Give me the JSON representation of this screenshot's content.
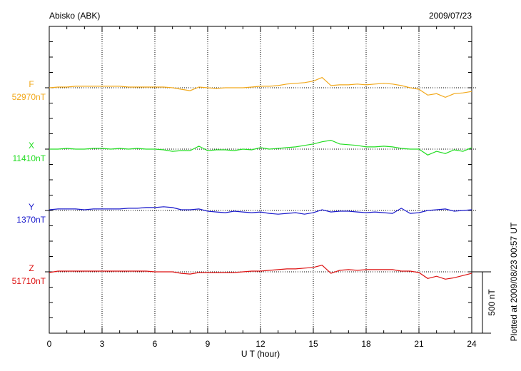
{
  "chart_data": {
    "type": "line",
    "title": "Abisko (ABK)",
    "date": "2009/07/23",
    "xlabel": "U T (hour)",
    "plotted_note": "Plotted at 2009/08/23 00:57 UT",
    "scale_bar": {
      "value": 500,
      "label": "500 nT"
    },
    "xlim": [
      0,
      24
    ],
    "xticks": [
      0,
      3,
      6,
      9,
      12,
      15,
      18,
      21,
      24
    ],
    "xminorticks": [
      0,
      1,
      2,
      3,
      4,
      5,
      6,
      7,
      8,
      9,
      10,
      11,
      12,
      13,
      14,
      15,
      16,
      17,
      18,
      19,
      20,
      21,
      22,
      23,
      24
    ],
    "grid": true,
    "ylim": [
      0,
      2500
    ],
    "yticks": [
      0,
      125,
      250,
      375,
      500,
      625,
      750,
      875,
      1000,
      1125,
      1250,
      1375,
      1500,
      1625,
      1750,
      1875,
      2000,
      2125,
      2250,
      2375,
      2500
    ],
    "x": [
      0,
      0.5,
      1,
      1.5,
      2,
      2.5,
      3,
      3.5,
      4,
      4.5,
      5,
      5.5,
      6,
      6.5,
      7,
      7.5,
      8,
      8.5,
      9,
      9.5,
      10,
      10.5,
      11,
      11.5,
      12,
      12.5,
      13,
      13.5,
      14,
      14.5,
      15,
      15.5,
      16,
      16.5,
      17,
      17.5,
      18,
      18.5,
      19,
      19.5,
      20,
      20.5,
      21,
      21.5,
      22,
      22.5,
      23,
      23.5,
      24
    ],
    "series": [
      {
        "name": "F",
        "color": "#f2a91c",
        "baseline": {
          "value": 52970,
          "label": "52970nT"
        },
        "values": [
          0,
          6,
          6,
          12,
          12,
          12,
          12,
          12,
          12,
          6,
          6,
          6,
          6,
          6,
          0,
          -12,
          -24,
          6,
          0,
          -6,
          0,
          0,
          0,
          6,
          12,
          12,
          18,
          30,
          36,
          42,
          54,
          84,
          18,
          24,
          24,
          30,
          24,
          30,
          36,
          30,
          18,
          0,
          -12,
          -60,
          -48,
          -78,
          -48,
          -42,
          -30
        ]
      },
      {
        "name": "X",
        "color": "#22dd22",
        "baseline": {
          "value": 11410,
          "label": "11410nT"
        },
        "values": [
          0,
          0,
          6,
          0,
          0,
          6,
          6,
          0,
          6,
          0,
          6,
          0,
          0,
          -6,
          -18,
          -12,
          -12,
          24,
          -12,
          -6,
          -6,
          -12,
          0,
          -6,
          12,
          0,
          6,
          12,
          18,
          30,
          42,
          60,
          72,
          42,
          36,
          30,
          18,
          18,
          24,
          18,
          6,
          0,
          0,
          -48,
          -18,
          -36,
          -6,
          -18,
          12
        ]
      },
      {
        "name": "Y",
        "color": "#1a1acc",
        "baseline": {
          "value": 1370,
          "label": "1370nT"
        },
        "values": [
          6,
          12,
          12,
          12,
          6,
          12,
          12,
          12,
          12,
          18,
          18,
          24,
          24,
          30,
          24,
          6,
          6,
          12,
          -6,
          -12,
          -18,
          -6,
          -12,
          -18,
          -12,
          -24,
          -30,
          -24,
          -18,
          -30,
          -18,
          6,
          -12,
          -6,
          -6,
          -12,
          -18,
          -12,
          -18,
          -24,
          18,
          -24,
          -18,
          0,
          6,
          12,
          -6,
          0,
          6
        ]
      },
      {
        "name": "Z",
        "color": "#dd1111",
        "baseline": {
          "value": 51710,
          "label": "51710nT"
        },
        "values": [
          -6,
          6,
          6,
          6,
          6,
          6,
          6,
          6,
          6,
          6,
          6,
          6,
          0,
          0,
          0,
          -12,
          -18,
          -6,
          -6,
          -6,
          -6,
          -6,
          0,
          6,
          6,
          12,
          18,
          24,
          24,
          30,
          36,
          54,
          -12,
          12,
          18,
          12,
          18,
          18,
          18,
          18,
          6,
          6,
          -6,
          -54,
          -36,
          -60,
          -48,
          -30,
          -12
        ]
      }
    ]
  }
}
